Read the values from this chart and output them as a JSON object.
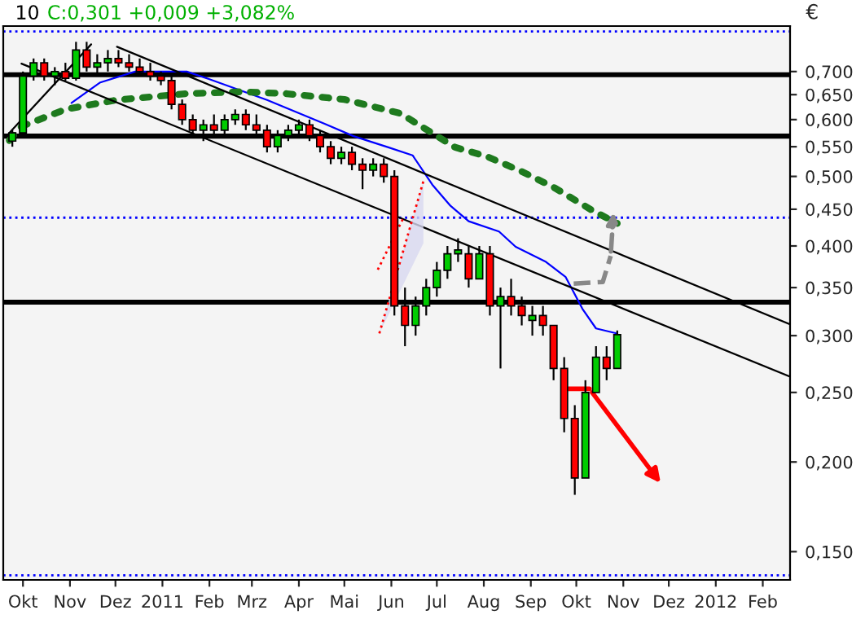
{
  "chart_data": {
    "type": "candlestick",
    "title": "10",
    "subtitle": "C:0,301 +0,009 +3,082%",
    "ylabel": "€",
    "x": [
      "2010-09-24",
      "2010-10-01",
      "2010-10-08",
      "2010-10-15",
      "2010-10-22",
      "2010-10-29",
      "2010-11-05",
      "2010-11-12",
      "2010-11-19",
      "2010-11-26",
      "2010-12-03",
      "2010-12-10",
      "2010-12-17",
      "2010-12-24",
      "2010-12-31",
      "2011-01-07",
      "2011-01-14",
      "2011-01-21",
      "2011-01-28",
      "2011-02-04",
      "2011-02-11",
      "2011-02-18",
      "2011-02-25",
      "2011-03-04",
      "2011-03-11",
      "2011-03-18",
      "2011-03-25",
      "2011-04-01",
      "2011-04-08",
      "2011-04-15",
      "2011-04-22",
      "2011-04-29",
      "2011-05-06",
      "2011-05-13",
      "2011-05-20",
      "2011-05-27",
      "2011-06-03",
      "2011-06-10",
      "2011-06-17",
      "2011-06-24",
      "2011-07-01",
      "2011-07-08",
      "2011-07-15",
      "2011-07-22",
      "2011-07-29",
      "2011-08-05",
      "2011-08-12",
      "2011-08-19",
      "2011-08-26",
      "2011-09-02",
      "2011-09-09",
      "2011-09-16",
      "2011-09-23",
      "2011-09-30",
      "2011-10-07",
      "2011-10-14",
      "2011-10-21",
      "2011-10-28"
    ],
    "ohlc": [
      [
        0.56,
        0.58,
        0.55,
        0.575
      ],
      [
        0.575,
        0.7,
        0.57,
        0.69
      ],
      [
        0.69,
        0.73,
        0.68,
        0.72
      ],
      [
        0.72,
        0.73,
        0.68,
        0.69
      ],
      [
        0.69,
        0.71,
        0.67,
        0.7
      ],
      [
        0.7,
        0.72,
        0.68,
        0.685
      ],
      [
        0.685,
        0.77,
        0.68,
        0.75
      ],
      [
        0.75,
        0.77,
        0.7,
        0.71
      ],
      [
        0.71,
        0.74,
        0.69,
        0.72
      ],
      [
        0.72,
        0.75,
        0.7,
        0.73
      ],
      [
        0.73,
        0.75,
        0.71,
        0.72
      ],
      [
        0.72,
        0.74,
        0.7,
        0.71
      ],
      [
        0.71,
        0.73,
        0.69,
        0.7
      ],
      [
        0.7,
        0.72,
        0.68,
        0.69
      ],
      [
        0.69,
        0.7,
        0.67,
        0.68
      ],
      [
        0.68,
        0.69,
        0.62,
        0.63
      ],
      [
        0.63,
        0.64,
        0.59,
        0.6
      ],
      [
        0.6,
        0.61,
        0.57,
        0.58
      ],
      [
        0.58,
        0.6,
        0.56,
        0.59
      ],
      [
        0.59,
        0.61,
        0.57,
        0.58
      ],
      [
        0.58,
        0.61,
        0.57,
        0.6
      ],
      [
        0.6,
        0.62,
        0.59,
        0.61
      ],
      [
        0.61,
        0.62,
        0.58,
        0.59
      ],
      [
        0.59,
        0.61,
        0.57,
        0.58
      ],
      [
        0.58,
        0.59,
        0.54,
        0.55
      ],
      [
        0.55,
        0.58,
        0.54,
        0.57
      ],
      [
        0.57,
        0.59,
        0.56,
        0.58
      ],
      [
        0.58,
        0.6,
        0.57,
        0.59
      ],
      [
        0.59,
        0.6,
        0.56,
        0.57
      ],
      [
        0.57,
        0.58,
        0.54,
        0.55
      ],
      [
        0.55,
        0.56,
        0.52,
        0.53
      ],
      [
        0.53,
        0.55,
        0.52,
        0.54
      ],
      [
        0.54,
        0.55,
        0.51,
        0.52
      ],
      [
        0.52,
        0.53,
        0.48,
        0.51
      ],
      [
        0.51,
        0.53,
        0.5,
        0.52
      ],
      [
        0.52,
        0.53,
        0.49,
        0.5
      ],
      [
        0.5,
        0.51,
        0.32,
        0.33
      ],
      [
        0.33,
        0.35,
        0.29,
        0.31
      ],
      [
        0.31,
        0.34,
        0.3,
        0.33
      ],
      [
        0.33,
        0.36,
        0.32,
        0.35
      ],
      [
        0.35,
        0.38,
        0.34,
        0.37
      ],
      [
        0.37,
        0.4,
        0.36,
        0.39
      ],
      [
        0.39,
        0.41,
        0.38,
        0.395
      ],
      [
        0.39,
        0.4,
        0.35,
        0.36
      ],
      [
        0.36,
        0.4,
        0.36,
        0.39
      ],
      [
        0.39,
        0.4,
        0.32,
        0.33
      ],
      [
        0.33,
        0.35,
        0.27,
        0.34
      ],
      [
        0.34,
        0.36,
        0.32,
        0.33
      ],
      [
        0.33,
        0.34,
        0.31,
        0.32
      ],
      [
        0.315,
        0.33,
        0.3,
        0.32
      ],
      [
        0.32,
        0.33,
        0.3,
        0.31
      ],
      [
        0.31,
        0.31,
        0.26,
        0.27
      ],
      [
        0.27,
        0.28,
        0.22,
        0.23
      ],
      [
        0.23,
        0.24,
        0.18,
        0.19
      ],
      [
        0.19,
        0.26,
        0.19,
        0.25
      ],
      [
        0.25,
        0.29,
        0.25,
        0.28
      ],
      [
        0.28,
        0.29,
        0.26,
        0.27
      ],
      [
        0.27,
        0.305,
        0.27,
        0.301
      ]
    ],
    "colors": [
      "#00cc00",
      "#00cc00",
      "#00cc00",
      "#ff0000",
      "#00cc00",
      "#ff0000",
      "#00cc00",
      "#ff0000",
      "#00cc00",
      "#00cc00",
      "#ff0000",
      "#ff0000",
      "#ff0000",
      "#ff0000",
      "#ff0000",
      "#ff0000",
      "#ff0000",
      "#ff0000",
      "#00cc00",
      "#ff0000",
      "#00cc00",
      "#00cc00",
      "#ff0000",
      "#ff0000",
      "#ff0000",
      "#00cc00",
      "#00cc00",
      "#00cc00",
      "#ff0000",
      "#ff0000",
      "#ff0000",
      "#00cc00",
      "#ff0000",
      "#ff0000",
      "#00cc00",
      "#ff0000",
      "#ff0000",
      "#ff0000",
      "#00cc00",
      "#00cc00",
      "#00cc00",
      "#00cc00",
      "#00cc00",
      "#ff0000",
      "#00cc00",
      "#ff0000",
      "#00cc00",
      "#ff0000",
      "#ff0000",
      "#00cc00",
      "#ff0000",
      "#ff0000",
      "#ff0000",
      "#ff0000",
      "#00cc00",
      "#00cc00",
      "#ff0000",
      "#00cc00"
    ],
    "series": [
      {
        "type": "line",
        "color": "#0000ff",
        "line_style": "solid",
        "x": [
          "2010-11-02",
          "2010-11-21",
          "2010-12-14",
          "2011-01-17",
          "2011-02-01",
          "2011-03-11",
          "2011-04-18",
          "2011-05-07",
          "2011-05-30",
          "2011-06-15",
          "2011-06-28",
          "2011-07-10",
          "2011-07-22",
          "2011-08-11",
          "2011-08-22",
          "2011-09-11",
          "2011-09-24",
          "2011-10-05",
          "2011-10-14",
          "2011-10-28"
        ],
        "values": [
          0.633,
          0.676,
          0.7,
          0.7,
          0.683,
          0.639,
          0.592,
          0.569,
          0.549,
          0.535,
          0.487,
          0.455,
          0.433,
          0.419,
          0.399,
          0.38,
          0.362,
          0.327,
          0.307,
          0.302
        ]
      },
      {
        "type": "line",
        "color": "#1e7a1e",
        "line_style": "dotted",
        "x": [
          "2010-09-22",
          "2010-09-30",
          "2010-10-29",
          "2010-12-02",
          "2011-01-17",
          "2011-02-22",
          "2011-03-24",
          "2011-05-01",
          "2011-06-07",
          "2011-07-13",
          "2011-08-03",
          "2011-08-26",
          "2011-09-16",
          "2011-10-11",
          "2011-10-28"
        ],
        "values": [
          0.561,
          0.587,
          0.62,
          0.639,
          0.652,
          0.656,
          0.652,
          0.64,
          0.612,
          0.549,
          0.533,
          0.508,
          0.483,
          0.449,
          0.43
        ]
      },
      {
        "type": "line",
        "color": "#000000",
        "line_style": "solid",
        "x": [
          "2010-12-02",
          "2012-02-19"
        ],
        "values": [
          0.758,
          0.311
        ]
      },
      {
        "type": "line",
        "color": "#000000",
        "line_style": "solid",
        "x": [
          "2010-09-30",
          "2012-02-19"
        ],
        "values": [
          0.718,
          0.263
        ]
      },
      {
        "type": "line",
        "color": "#000000",
        "line_style": "solid",
        "x": [
          "2010-09-20",
          "2010-11-15"
        ],
        "values": [
          0.569,
          0.764
        ]
      }
    ],
    "ref_lines": [
      {
        "axis": "y",
        "value": 0.693,
        "color": "#000000",
        "line_style": "solid"
      },
      {
        "axis": "y",
        "value": 0.569,
        "color": "#000000",
        "line_style": "solid"
      },
      {
        "axis": "y",
        "value": 0.334,
        "color": "#000000",
        "line_style": "solid"
      },
      {
        "axis": "y",
        "value": 0.796,
        "color": "#0000ff",
        "line_style": "dotted"
      },
      {
        "axis": "y",
        "value": 0.438,
        "color": "#0000ff",
        "line_style": "dotted"
      },
      {
        "axis": "y",
        "value": 0.139,
        "color": "#0000ff",
        "line_style": "dotted"
      }
    ],
    "log": true,
    "ylim": [
      0.137,
      0.81
    ],
    "yticks": [
      {
        "value": 0.15,
        "label": "0,150"
      },
      {
        "value": 0.2,
        "label": "0,200"
      },
      {
        "value": 0.25,
        "label": "0,250"
      },
      {
        "value": 0.3,
        "label": "0,300"
      },
      {
        "value": 0.35,
        "label": "0,350"
      },
      {
        "value": 0.4,
        "label": "0,400"
      },
      {
        "value": 0.45,
        "label": "0,450"
      },
      {
        "value": 0.5,
        "label": "0,500"
      },
      {
        "value": 0.55,
        "label": "0,550"
      },
      {
        "value": 0.6,
        "label": "0,600"
      },
      {
        "value": 0.65,
        "label": "0,650"
      },
      {
        "value": 0.7,
        "label": "0,700"
      }
    ],
    "xlim": [
      "2010-09-18",
      "2012-02-19"
    ],
    "xticks": [
      {
        "value": "2010-10-01",
        "label": "Okt"
      },
      {
        "value": "2010-11-01",
        "label": "Nov"
      },
      {
        "value": "2010-12-01",
        "label": "Dez"
      },
      {
        "value": "2011-01-01",
        "label": "2011"
      },
      {
        "value": "2011-02-01",
        "label": "Feb"
      },
      {
        "value": "2011-03-01",
        "label": "Mrz"
      },
      {
        "value": "2011-04-01",
        "label": "Apr"
      },
      {
        "value": "2011-05-01",
        "label": "Mai"
      },
      {
        "value": "2011-06-01",
        "label": "Jun"
      },
      {
        "value": "2011-07-01",
        "label": "Jul"
      },
      {
        "value": "2011-08-01",
        "label": "Aug"
      },
      {
        "value": "2011-09-01",
        "label": "Sep"
      },
      {
        "value": "2011-10-01",
        "label": "Okt"
      },
      {
        "value": "2011-11-01",
        "label": "Nov"
      },
      {
        "value": "2011-12-01",
        "label": "Dez"
      },
      {
        "value": "2012-01-01",
        "label": "2012"
      },
      {
        "value": "2012-02-01",
        "label": "Feb"
      }
    ],
    "grid": false,
    "legend": false
  }
}
